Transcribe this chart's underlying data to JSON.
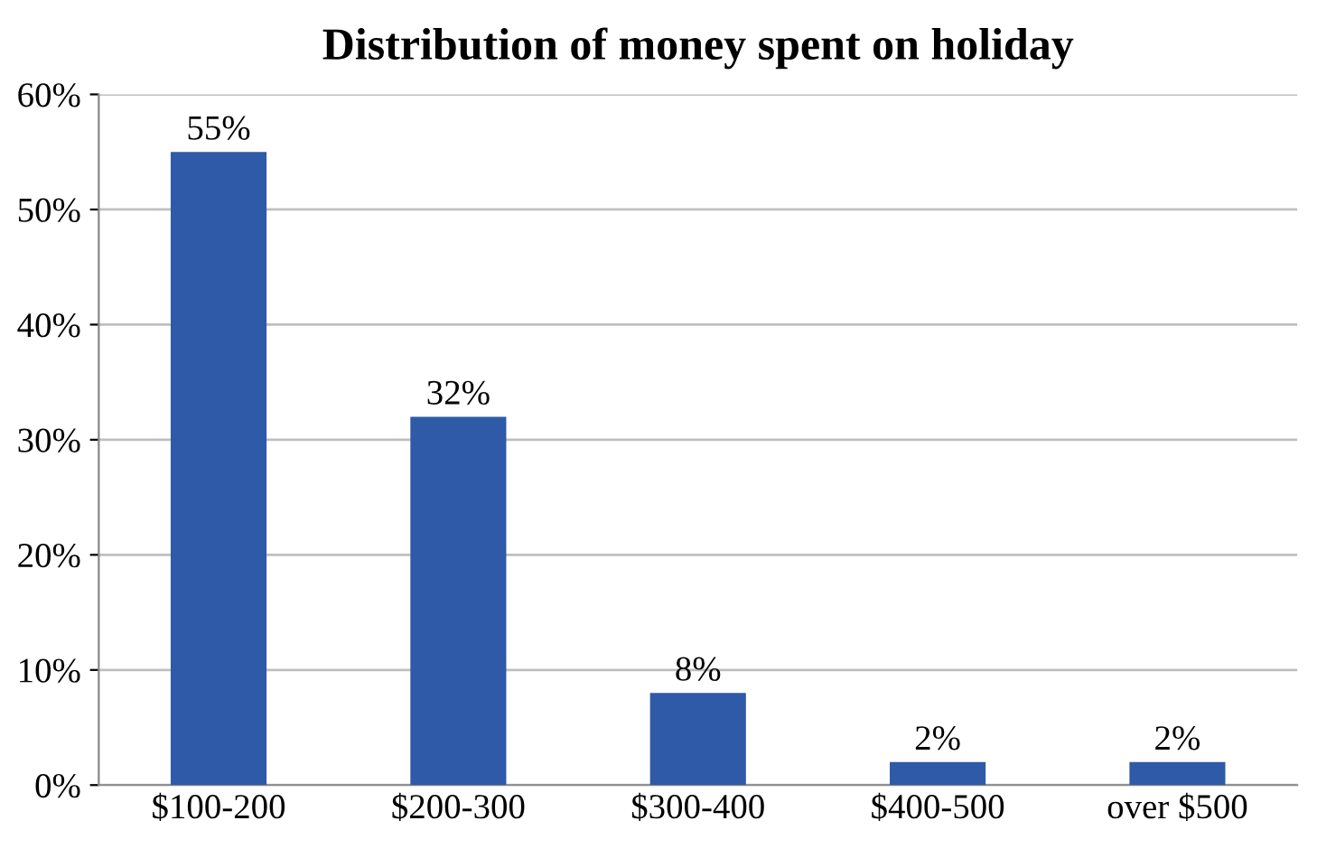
{
  "chart_data": {
    "type": "bar",
    "title": "Distribution of money spent on holiday",
    "categories": [
      "$100-200",
      "$200-300",
      "$300-400",
      "$400-500",
      "over $500"
    ],
    "values": [
      55,
      32,
      8,
      2,
      2
    ],
    "value_labels": [
      "55%",
      "32%",
      "8%",
      "2%",
      "2%"
    ],
    "color": "#2e5aa8",
    "ylim": [
      0,
      60
    ],
    "yticks": [
      {
        "value": 0,
        "label": "0%"
      },
      {
        "value": 10,
        "label": "10%"
      },
      {
        "value": 20,
        "label": "20%"
      },
      {
        "value": 30,
        "label": "30%"
      },
      {
        "value": 40,
        "label": "40%"
      },
      {
        "value": 50,
        "label": "50%"
      },
      {
        "value": 60,
        "label": "60%"
      }
    ],
    "grid": "y",
    "legend": false
  }
}
